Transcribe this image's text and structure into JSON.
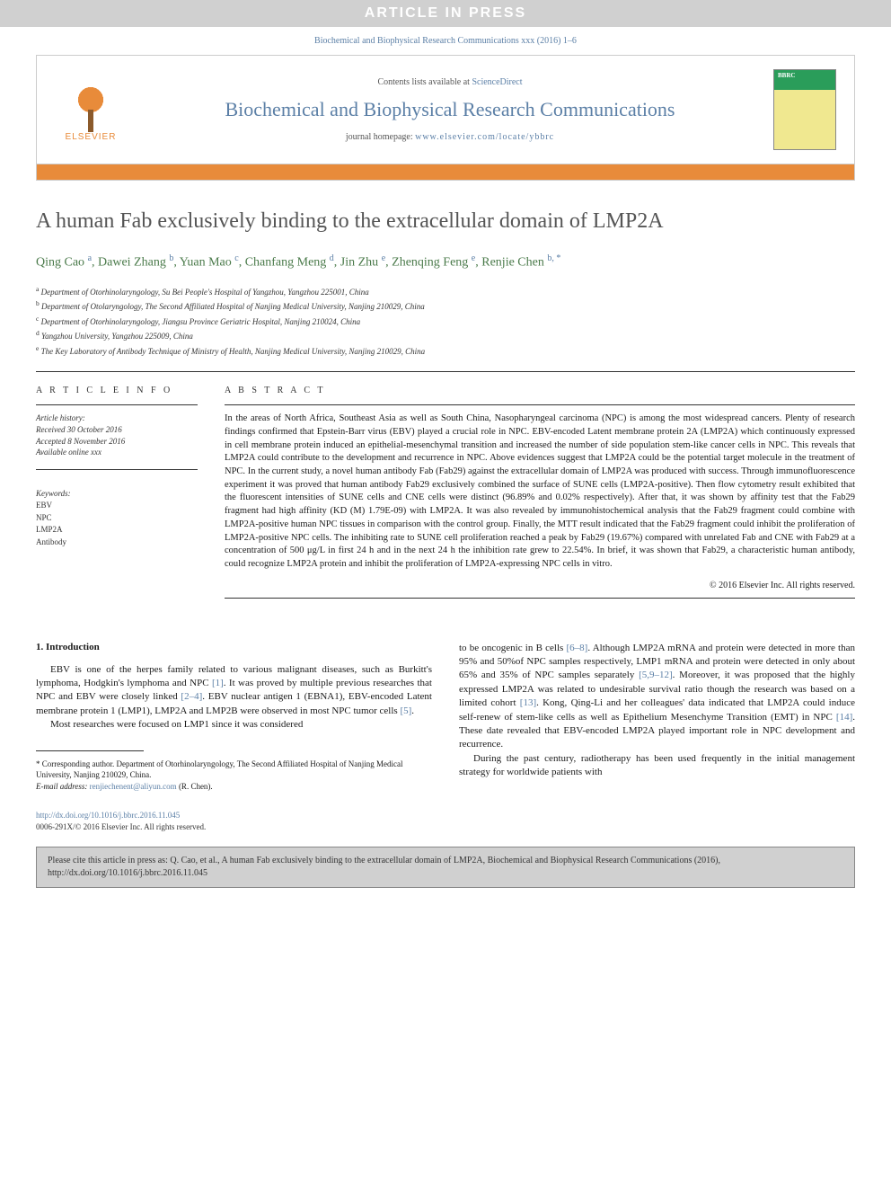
{
  "banner": "ARTICLE IN PRESS",
  "journal_ref": "Biochemical and Biophysical Research Communications xxx (2016) 1–6",
  "header": {
    "contents_prefix": "Contents lists available at ",
    "contents_link": "ScienceDirect",
    "journal_title": "Biochemical and Biophysical Research Communications",
    "homepage_prefix": "journal homepage: ",
    "homepage_url": "www.elsevier.com/locate/ybbrc",
    "publisher": "ELSEVIER"
  },
  "title": "A human Fab exclusively binding to the extracellular domain of LMP2A",
  "authors_html": "Qing Cao <sup>a</sup>, Dawei Zhang <sup>b</sup>, Yuan Mao <sup>c</sup>, Chanfang Meng <sup>d</sup>, Jin Zhu <sup>e</sup>, Zhenqing Feng <sup>e</sup>, Renjie Chen <sup>b, *</sup>",
  "affiliations": [
    "a Department of Otorhinolaryngology, Su Bei People's Hospital of Yangzhou, Yangzhou 225001, China",
    "b Department of Otolaryngology, The Second Affiliated Hospital of Nanjing Medical University, Nanjing 210029, China",
    "c Department of Otorhinolaryngology, Jiangsu Province Geriatric Hospital, Nanjing 210024, China",
    "d Yangzhou University, Yangzhou 225009, China",
    "e The Key Laboratory of Antibody Technique of Ministry of Health, Nanjing Medical University, Nanjing 210029, China"
  ],
  "article_info": {
    "heading": "A R T I C L E  I N F O",
    "history_label": "Article history:",
    "received": "Received 30 October 2016",
    "accepted": "Accepted 8 November 2016",
    "online": "Available online xxx",
    "keywords_label": "Keywords:",
    "keywords": [
      "EBV",
      "NPC",
      "LMP2A",
      "Antibody"
    ]
  },
  "abstract": {
    "heading": "A B S T R A C T",
    "text": "In the areas of North Africa, Southeast Asia as well as South China, Nasopharyngeal carcinoma (NPC) is among the most widespread cancers. Plenty of research findings confirmed that Epstein-Barr virus (EBV) played a crucial role in NPC. EBV-encoded Latent membrane protein 2A (LMP2A) which continuously expressed in cell membrane protein induced an epithelial-mesenchymal transition and increased the number of side population stem-like cancer cells in NPC. This reveals that LMP2A could contribute to the development and recurrence in NPC. Above evidences suggest that LMP2A could be the potential target molecule in the treatment of NPC. In the current study, a novel human antibody Fab (Fab29) against the extracellular domain of LMP2A was produced with success. Through immunofluorescence experiment it was proved that human antibody Fab29 exclusively combined the surface of SUNE cells (LMP2A-positive). Then flow cytometry result exhibited that the fluorescent intensities of SUNE cells and CNE cells were distinct (96.89% and 0.02% respectively). After that, it was shown by affinity test that the Fab29 fragment had high affinity (KD (M) 1.79E-09) with LMP2A. It was also revealed by immunohistochemical analysis that the Fab29 fragment could combine with LMP2A-positive human NPC tissues in comparison with the control group. Finally, the MTT result indicated that the Fab29 fragment could inhibit the proliferation of LMP2A-positive NPC cells. The inhibiting rate to SUNE cell proliferation reached a peak by Fab29 (19.67%) compared with unrelated Fab and CNE with Fab29 at a concentration of 500 μg/L in first 24 h and in the next 24 h the inhibition rate grew to 22.54%. In brief, it was shown that Fab29, a characteristic human antibody, could recognize LMP2A protein and inhibit the proliferation of LMP2A-expressing NPC cells in vitro.",
    "copyright": "© 2016 Elsevier Inc. All rights reserved."
  },
  "introduction": {
    "heading": "1. Introduction",
    "p1": "EBV is one of the herpes family related to various malignant diseases, such as Burkitt's lymphoma, Hodgkin's lymphoma and NPC [1]. It was proved by multiple previous researches that NPC and EBV were closely linked [2–4]. EBV nuclear antigen 1 (EBNA1), EBV-encoded Latent membrane protein 1 (LMP1), LMP2A and LMP2B were observed in most NPC tumor cells [5].",
    "p2": "Most researches were focused on LMP1 since it was considered",
    "p3": "to be oncogenic in B cells [6–8]. Although LMP2A mRNA and protein were detected in more than 95% and 50%of NPC samples respectively, LMP1 mRNA and protein were detected in only about 65% and 35% of NPC samples separately [5,9–12]. Moreover, it was proposed that the highly expressed LMP2A was related to undesirable survival ratio though the research was based on a limited cohort [13]. Kong, Qing-Li and her colleagues' data indicated that LMP2A could induce self-renew of stem-like cells as well as Epithelium Mesenchyme Transition (EMT) in NPC [14]. These date revealed that EBV-encoded LMP2A played important role in NPC development and recurrence.",
    "p4": "During the past century, radiotherapy has been used frequently in the initial management strategy for worldwide patients with"
  },
  "footnote": {
    "corresponding": "* Corresponding author. Department of Otorhinolaryngology, The Second Affiliated Hospital of Nanjing Medical University, Nanjing 210029, China.",
    "email_label": "E-mail address: ",
    "email": "renjiechenent@aliyun.com",
    "email_suffix": " (R. Chen)."
  },
  "doi": {
    "url": "http://dx.doi.org/10.1016/j.bbrc.2016.11.045",
    "issn": "0006-291X/© 2016 Elsevier Inc. All rights reserved."
  },
  "citation_box": "Please cite this article in press as: Q. Cao, et al., A human Fab exclusively binding to the extracellular domain of LMP2A, Biochemical and Biophysical Research Communications (2016), http://dx.doi.org/10.1016/j.bbrc.2016.11.045",
  "colors": {
    "banner_bg": "#d0d0d0",
    "link": "#5b7fa6",
    "orange": "#e88b3a",
    "author_green": "#4a7a4a"
  }
}
